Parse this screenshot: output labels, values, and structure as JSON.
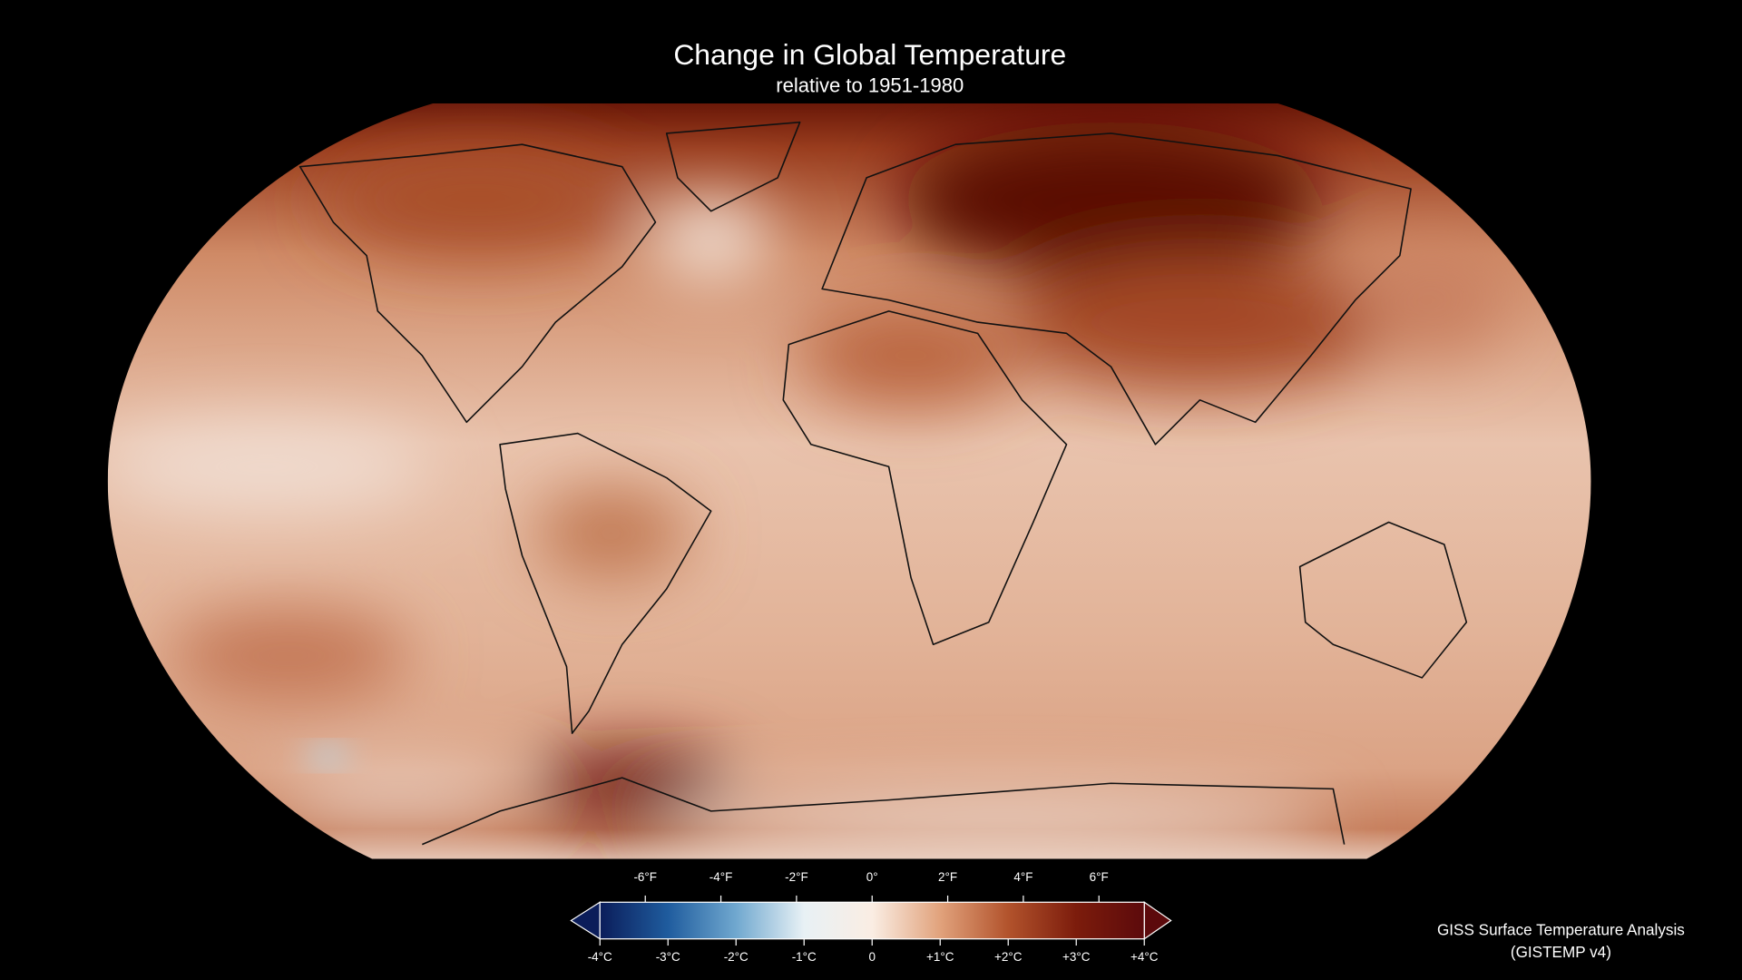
{
  "title": "Change in Global Temperature",
  "subtitle": "relative to 1951-1980",
  "colorbar": {
    "clim": [
      -4,
      4
    ],
    "cticks": [
      {
        "value": -4,
        "label": "-4°C"
      },
      {
        "value": -3,
        "label": "-3°C"
      },
      {
        "value": -2,
        "label": "-2°C"
      },
      {
        "value": -1,
        "label": "-1°C"
      },
      0,
      {
        "value": 1,
        "label": "+1°C"
      },
      {
        "value": 2,
        "label": "+2°C"
      },
      {
        "value": 3,
        "label": "+3°C"
      },
      {
        "value": 4,
        "label": "+4°C"
      }
    ],
    "flim": [
      -7.2,
      7.2
    ],
    "fticks": [
      {
        "value": -6,
        "label": "-6°F"
      },
      {
        "value": -4,
        "label": "-4°F"
      },
      {
        "value": -2,
        "label": "-2°F"
      },
      {
        "value": 0,
        "label": "0°"
      },
      {
        "value": 2,
        "label": "2°F"
      },
      {
        "value": 4,
        "label": "4°F"
      },
      {
        "value": 6,
        "label": "6°F"
      }
    ],
    "colors": [
      "#0b1d5a",
      "#1f5c9e",
      "#70a8cf",
      "#e8f1f5",
      "#faede3",
      "#e1a27c",
      "#b2532c",
      "#7c1c0c",
      "#5c0a0c"
    ]
  },
  "credit": {
    "line1": "GISS Surface Temperature Analysis",
    "line2": "(GISTEMP v4)"
  }
}
